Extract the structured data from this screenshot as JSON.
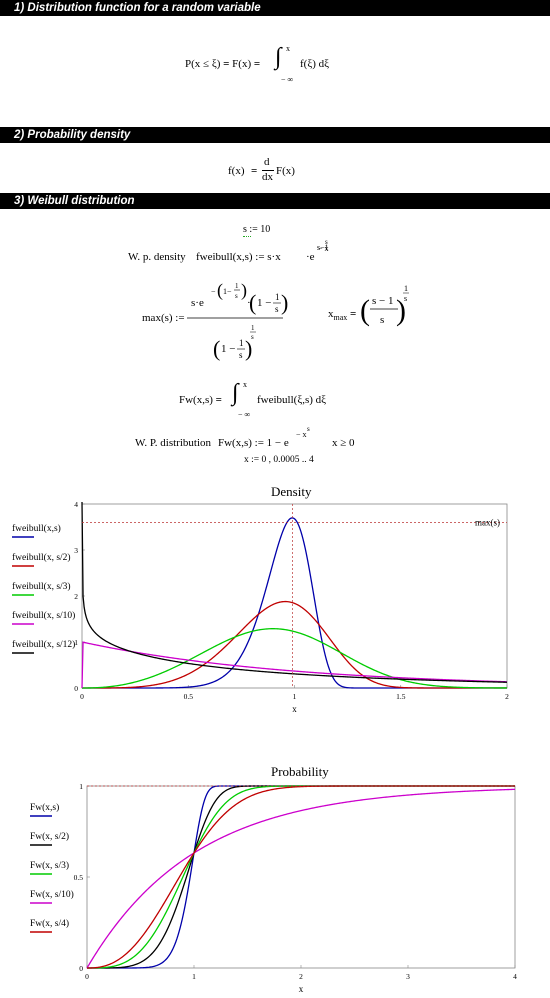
{
  "sections": [
    {
      "title": "1) Distribution function for a random variable"
    },
    {
      "title": "2) Probability density"
    },
    {
      "title": "3) Weibull distribution"
    }
  ],
  "eq1": {
    "lhs": "P(x ≤ ξ)",
    "mid": "F(x)",
    "int_upper": "x",
    "int_lower": "− ∞",
    "integrand": "f(ξ) dξ"
  },
  "eq2": {
    "lhs": "f(x)",
    "d": "d",
    "dx": "dx",
    "rhs": "F(x)"
  },
  "weibull": {
    "s_def": "s := 10",
    "density_label": "W. p. density",
    "density_def": "fweibull(x,s) := s·x",
    "density_exp1": "s−1",
    "density_exp2": "·e",
    "density_exp3": "− x",
    "density_exp4": "s",
    "max_lhs": "max(s) :=",
    "xmax": "x",
    "xmax_sub": "max",
    "fw_def_lhs": "Fw(x,s)",
    "fw_integrand": "fweibull(ξ,s) dξ",
    "dist_label": "W. P. distribution",
    "dist_def": "Fw(x,s) := 1 − e",
    "dist_exp": "− x",
    "dist_exp2": "s",
    "dist_cond": "x ≥ 0",
    "x_range": "x := 0 , 0.0005 .. 4"
  },
  "chart_data": [
    {
      "type": "line",
      "title": "Density",
      "xlabel": "x",
      "ylabel": "",
      "xlim": [
        0,
        2
      ],
      "ylim": [
        0,
        4
      ],
      "xticks": [
        "0",
        "0.5",
        "1",
        "1.5",
        "2"
      ],
      "yticks": [
        "0",
        "1",
        "2",
        "3",
        "4"
      ],
      "annotation": "max(s)",
      "series": [
        {
          "name": "fweibull(x,s)",
          "color": "#0000aa",
          "s": 10
        },
        {
          "name": "fweibull(x, s/2)",
          "color": "#c00000",
          "s": 5
        },
        {
          "name": "fweibull(x, s/3)",
          "color": "#00cc00",
          "s": 3.333
        },
        {
          "name": "fweibull(x, s/10)",
          "color": "#cc00cc",
          "s": 1
        },
        {
          "name": "fweibull(x, s/12)",
          "color": "#000000",
          "s": 0.8333
        }
      ]
    },
    {
      "type": "line",
      "title": "Probability",
      "xlabel": "x",
      "ylabel": "",
      "xlim": [
        0,
        4
      ],
      "ylim": [
        0,
        1
      ],
      "xticks": [
        "0",
        "1",
        "2",
        "3",
        "4"
      ],
      "yticks": [
        "0",
        "0.5",
        "1"
      ],
      "series": [
        {
          "name": "Fw(x,s)",
          "color": "#0000aa",
          "s": 10
        },
        {
          "name": "Fw(x, s/2)",
          "color": "#000000",
          "s": 5
        },
        {
          "name": "Fw(x, s/3)",
          "color": "#00cc00",
          "s": 3.333
        },
        {
          "name": "Fw(x, s/10)",
          "color": "#cc00cc",
          "s": 1
        },
        {
          "name": "Fw(x, s/4)",
          "color": "#c00000",
          "s": 2.5
        }
      ]
    }
  ]
}
